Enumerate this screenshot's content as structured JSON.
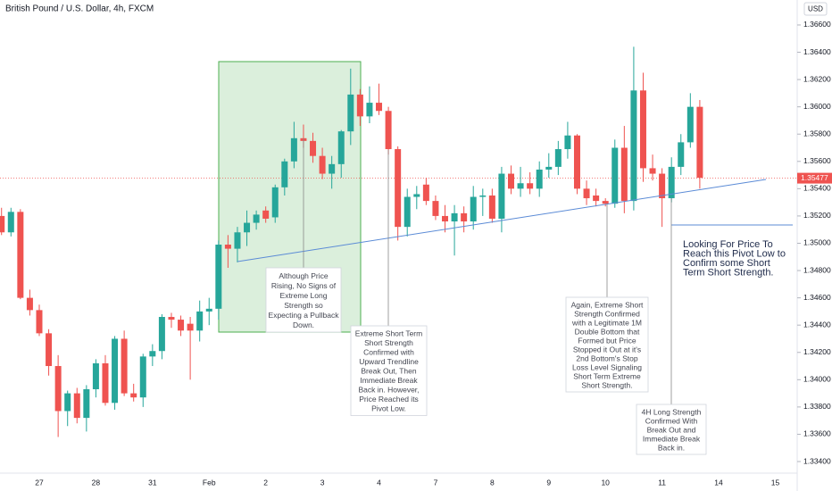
{
  "chart_data": {
    "type": "candlestick",
    "title": "British Pound / U.S. Dollar, 4h, FXCM",
    "currency": "USD",
    "up_color": "#26a69a",
    "down_color": "#ef5350",
    "grid": false,
    "categories": [
      null,
      null,
      null,
      null,
      "27",
      null,
      null,
      null,
      null,
      null,
      "28",
      null,
      null,
      null,
      null,
      null,
      "31",
      null,
      null,
      null,
      null,
      null,
      "Feb",
      null,
      null,
      null,
      null,
      null,
      "2",
      null,
      null,
      null,
      null,
      null,
      "3",
      null,
      null,
      null,
      null,
      null,
      "4",
      null,
      null,
      null,
      null,
      null,
      "7",
      null,
      null,
      null,
      null,
      null,
      "8",
      null,
      null,
      null,
      null,
      null,
      "9",
      null,
      null,
      null,
      null,
      null,
      "10",
      null,
      null,
      null,
      null,
      null,
      "11",
      null,
      null,
      null,
      null,
      null,
      "14",
      null,
      null,
      null,
      null,
      null,
      "15"
    ],
    "open": [
      1.352,
      1.3508,
      1.3523,
      1.346,
      1.3451,
      1.3434,
      1.341,
      1.3377,
      1.339,
      1.3372,
      1.3393,
      1.3412,
      1.3383,
      1.343,
      1.339,
      1.3387,
      1.3417,
      1.3421,
      1.3446,
      1.3444,
      1.3441,
      1.3436,
      1.345,
      1.3452,
      1.3499,
      1.3496,
      1.3508,
      1.3515,
      1.3524,
      1.3519,
      1.3541,
      1.356,
      1.3577,
      1.3575,
      1.3564,
      1.3551,
      1.3558,
      1.3582,
      1.3609,
      1.3593,
      1.3603,
      1.3597,
      1.3569,
      1.3512,
      1.3534,
      1.3543,
      1.3531,
      1.352,
      1.3516,
      1.3522,
      1.3516,
      1.3534,
      1.3535,
      1.3518,
      1.3551,
      1.354,
      1.3544,
      1.354,
      1.3554,
      1.3556,
      1.3569,
      1.3579,
      1.354,
      1.3535,
      1.3531,
      1.3529,
      1.357,
      1.3531,
      1.3612,
      1.3555,
      1.3551,
      1.3533,
      1.3556,
      1.3574,
      1.36,
      null,
      null,
      null,
      null,
      null,
      null,
      null,
      null
    ],
    "high": [
      1.3526,
      1.3526,
      1.3525,
      1.3466,
      1.3455,
      1.3437,
      1.3418,
      1.3392,
      1.3394,
      1.3396,
      1.3415,
      1.3418,
      1.3432,
      1.3436,
      1.3397,
      1.3419,
      1.3426,
      1.3448,
      1.3449,
      1.3447,
      1.3446,
      1.3458,
      1.346,
      1.3502,
      1.3506,
      1.3512,
      1.3524,
      1.3524,
      1.3527,
      1.3543,
      1.3562,
      1.3589,
      1.3587,
      1.3581,
      1.357,
      1.3564,
      1.3583,
      1.3628,
      1.3613,
      1.3615,
      1.3617,
      1.36,
      1.3571,
      1.354,
      1.3542,
      1.3548,
      1.3535,
      1.3528,
      1.3528,
      1.3527,
      1.3542,
      1.354,
      1.354,
      1.3556,
      1.3557,
      1.3556,
      1.3552,
      1.356,
      1.3566,
      1.3575,
      1.3589,
      1.358,
      1.3546,
      1.354,
      1.3533,
      1.3576,
      1.3586,
      1.3644,
      1.3625,
      1.3565,
      1.3555,
      1.3563,
      1.358,
      1.361,
      1.3605,
      null,
      null,
      null,
      null,
      null,
      null,
      null,
      null
    ],
    "low": [
      1.3506,
      1.3505,
      1.3459,
      1.3447,
      1.3432,
      1.3403,
      1.3358,
      1.3366,
      1.3368,
      1.3362,
      1.3387,
      1.3381,
      1.3378,
      1.3388,
      1.3384,
      1.338,
      1.341,
      1.3415,
      1.3438,
      1.3432,
      1.34,
      1.3428,
      1.344,
      1.3444,
      1.3482,
      1.3486,
      1.3498,
      1.351,
      1.3515,
      1.3515,
      1.3535,
      1.3555,
      1.357,
      1.3559,
      1.3547,
      1.354,
      1.3548,
      1.3572,
      1.3586,
      1.3588,
      1.3594,
      1.3565,
      1.3502,
      1.3505,
      1.3525,
      1.3528,
      1.3517,
      1.3508,
      1.3491,
      1.3508,
      1.351,
      1.352,
      1.3515,
      1.3508,
      1.3536,
      1.3534,
      1.3536,
      1.3534,
      1.3548,
      1.355,
      1.3562,
      1.3536,
      1.3528,
      1.3527,
      1.3527,
      1.3526,
      1.3522,
      1.3524,
      1.3545,
      1.3546,
      1.3512,
      1.353,
      1.355,
      1.357,
      1.354,
      null,
      null,
      null,
      null,
      null,
      null,
      null,
      null
    ],
    "close": [
      1.3508,
      1.3523,
      1.346,
      1.3451,
      1.3434,
      1.341,
      1.3377,
      1.339,
      1.3372,
      1.3393,
      1.3412,
      1.3383,
      1.343,
      1.339,
      1.3387,
      1.3417,
      1.3421,
      1.3446,
      1.3444,
      1.3436,
      1.3436,
      1.345,
      1.3452,
      1.3499,
      1.3496,
      1.3508,
      1.3515,
      1.3521,
      1.3518,
      1.3541,
      1.356,
      1.3577,
      1.3575,
      1.3564,
      1.3551,
      1.3558,
      1.3582,
      1.3609,
      1.3593,
      1.3603,
      1.3597,
      1.3569,
      1.3512,
      1.3534,
      1.3536,
      1.3531,
      1.352,
      1.3516,
      1.3522,
      1.3516,
      1.3534,
      1.3535,
      1.3518,
      1.3551,
      1.354,
      1.3544,
      1.354,
      1.3554,
      1.3556,
      1.3569,
      1.3579,
      1.354,
      1.3533,
      1.3531,
      1.3529,
      1.357,
      1.3531,
      1.3612,
      1.3555,
      1.3551,
      1.3533,
      1.3556,
      1.3574,
      1.36,
      1.3548,
      null,
      null,
      null,
      null,
      null,
      null,
      null,
      null
    ],
    "ylim": [
      1.33315,
      1.36783
    ],
    "yticks": [
      {
        "value": 1.334,
        "label": "1.33400"
      },
      {
        "value": 1.336,
        "label": "1.33600"
      },
      {
        "value": 1.338,
        "label": "1.33800"
      },
      {
        "value": 1.34,
        "label": "1.34000"
      },
      {
        "value": 1.342,
        "label": "1.34200"
      },
      {
        "value": 1.344,
        "label": "1.34400"
      },
      {
        "value": 1.346,
        "label": "1.34600"
      },
      {
        "value": 1.348,
        "label": "1.34800"
      },
      {
        "value": 1.35,
        "label": "1.35000"
      },
      {
        "value": 1.352,
        "label": "1.35200"
      },
      {
        "value": 1.354,
        "label": "1.35400"
      },
      {
        "value": 1.356,
        "label": "1.35600"
      },
      {
        "value": 1.358,
        "label": "1.35800"
      },
      {
        "value": 1.36,
        "label": "1.36000"
      },
      {
        "value": 1.362,
        "label": "1.36200"
      },
      {
        "value": 1.364,
        "label": "1.36400"
      },
      {
        "value": 1.366,
        "label": "1.36600"
      }
    ],
    "last_price": {
      "value": 1.35477,
      "label": "1.35477"
    },
    "annotations": [
      {
        "lines": [
          "Although Price",
          "Rising, No Signs of",
          "Extreme Long",
          "Strength so",
          "Expecting a Pullback",
          "Down."
        ]
      },
      {
        "lines": [
          "Extreme Short Term",
          "Short Strength",
          "Confirmed with",
          "Upward Trendline",
          "Break Out, Then",
          "Immediate Break",
          "Back in. However,",
          "Price Reached its",
          "Pivot Low."
        ]
      },
      {
        "lines": [
          "Again, Extreme Short",
          "Strength Confirmed",
          "with a Legitimate 1M",
          "Double Bottom that",
          "Formed but Price",
          "Stopped it Out at it's",
          "2nd Bottom's Stop",
          "Loss Level Signaling",
          "Short Term Extreme",
          "Short Strength."
        ]
      },
      {
        "lines": [
          "4H Long Strength",
          "Confirmed With",
          "Break Out and",
          "Immediate Break",
          "Back in."
        ]
      },
      {
        "lines": [
          "Looking For Price To",
          "Reach this Pivot Low to",
          "Confirm some Short",
          "Term Short Strength."
        ]
      }
    ]
  }
}
